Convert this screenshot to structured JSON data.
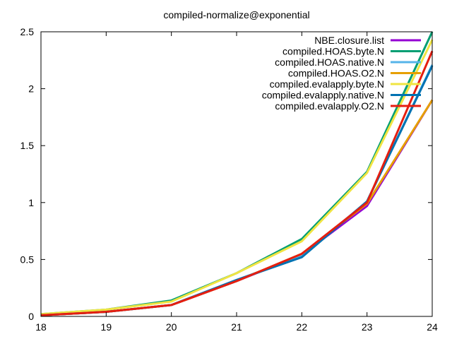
{
  "chart_data": {
    "type": "line",
    "title": "compiled-normalize@exponential",
    "xlabel": "",
    "ylabel": "",
    "x": [
      18,
      19,
      20,
      21,
      22,
      23,
      24
    ],
    "xlim": [
      18,
      24
    ],
    "ylim": [
      0,
      2.5
    ],
    "x_ticks": [
      "18",
      "19",
      "20",
      "21",
      "22",
      "23",
      "24"
    ],
    "y_ticks": [
      "0",
      "0.5",
      "1",
      "1.5",
      "2",
      "2.5"
    ],
    "grid": false,
    "legend_position": "top-right",
    "series": [
      {
        "name": "NBE.closure.list",
        "color": "#9400d3",
        "values": [
          0.01,
          0.04,
          0.1,
          0.31,
          0.54,
          0.97,
          1.9
        ]
      },
      {
        "name": "compiled.HOAS.byte.N",
        "color": "#009e73",
        "values": [
          0.02,
          0.06,
          0.14,
          0.38,
          0.68,
          1.27,
          2.5
        ]
      },
      {
        "name": "compiled.HOAS.native.N",
        "color": "#56b4e9",
        "values": [
          0.01,
          0.04,
          0.1,
          0.32,
          0.53,
          1.01,
          2.21
        ]
      },
      {
        "name": "compiled.HOAS.O2.N",
        "color": "#e69f00",
        "values": [
          0.01,
          0.04,
          0.1,
          0.31,
          0.55,
          0.99,
          1.9
        ]
      },
      {
        "name": "compiled.evalapply.byte.N",
        "color": "#f0e442",
        "values": [
          0.02,
          0.06,
          0.13,
          0.38,
          0.66,
          1.26,
          2.43
        ]
      },
      {
        "name": "compiled.evalapply.native.N",
        "color": "#0072b2",
        "values": [
          0.01,
          0.04,
          0.1,
          0.32,
          0.52,
          1.01,
          2.2
        ]
      },
      {
        "name": "compiled.evalapply.O2.N",
        "color": "#e51e10",
        "values": [
          0.01,
          0.04,
          0.1,
          0.31,
          0.55,
          1.0,
          2.33
        ]
      }
    ]
  }
}
